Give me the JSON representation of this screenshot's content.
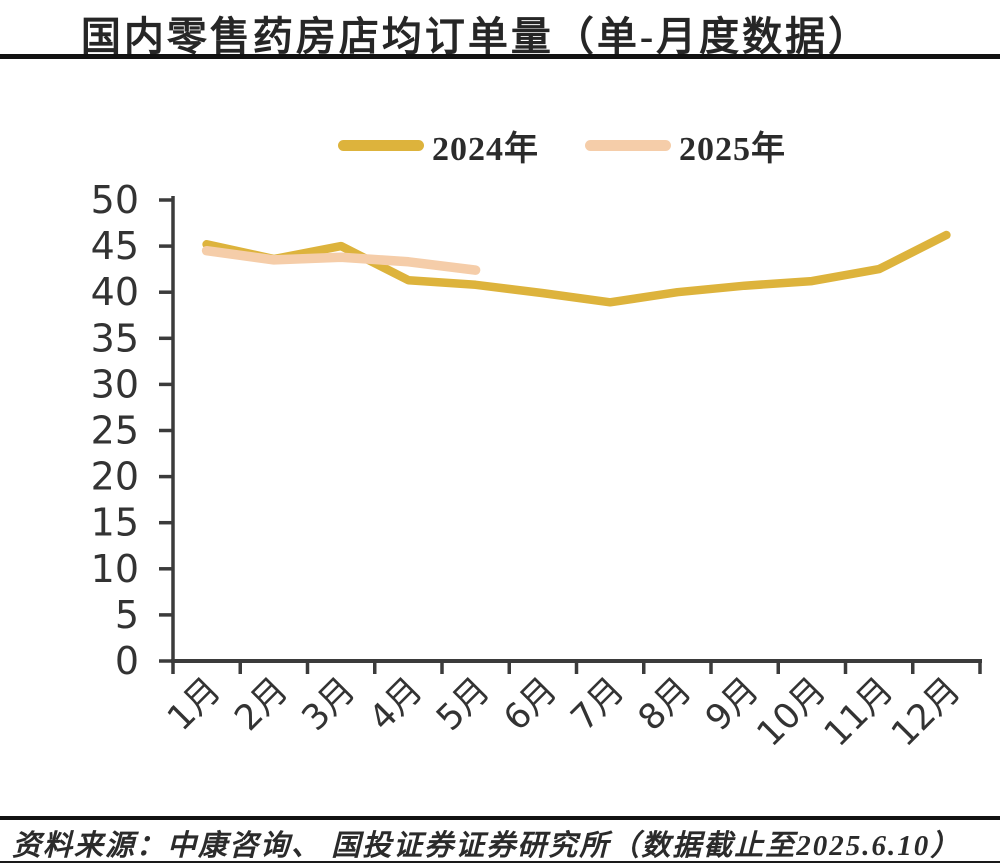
{
  "title": "国内零售药房店均订单量（单-月度数据）",
  "legend": [
    {
      "label": "2024年"
    },
    {
      "label": "2025年"
    }
  ],
  "footer": {
    "source_text": "资料来源：中康咨询、 国投证券证券研究所（数据截止至2025.6.10）"
  },
  "colors": {
    "series_2024": "#DDB33C",
    "series_2025": "#F5CDA9",
    "axis": "#3b3b3b",
    "text": "#2b2b2b"
  },
  "chart_data": {
    "type": "line",
    "title": "国内零售药房店均订单量（单-月度数据）",
    "categories": [
      "1月",
      "2月",
      "3月",
      "4月",
      "5月",
      "6月",
      "7月",
      "8月",
      "9月",
      "10月",
      "11月",
      "12月"
    ],
    "series": [
      {
        "name": "2024年",
        "color": "#DDB33C",
        "values": [
          45.2,
          43.6,
          45.0,
          41.3,
          40.8,
          39.9,
          38.9,
          40.0,
          40.7,
          41.2,
          42.5,
          46.2
        ]
      },
      {
        "name": "2025年",
        "color": "#F5CDA9",
        "values": [
          44.5,
          43.5,
          43.8,
          43.3,
          42.4
        ]
      }
    ],
    "xlabel": "",
    "ylabel": "",
    "ylim": [
      0,
      50
    ],
    "yticks": [
      0,
      5,
      10,
      15,
      20,
      25,
      30,
      35,
      40,
      45,
      50
    ],
    "grid": false,
    "legend_position": "top"
  }
}
